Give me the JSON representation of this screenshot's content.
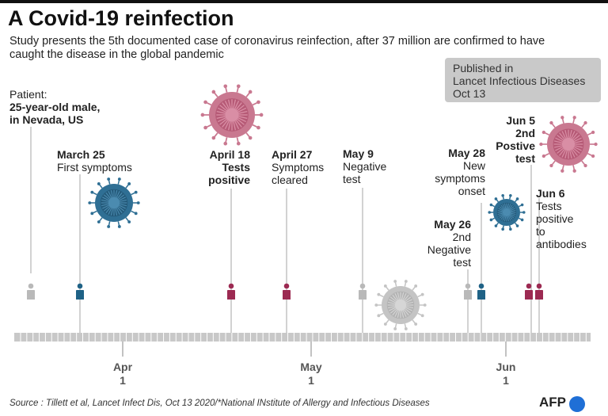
{
  "title": "A Covid-19 reinfection",
  "subtitle": "Study presents the 5th documented case of coronavirus reinfection, after 37 million are confirmed to have caught the disease in the global pandemic",
  "publication": {
    "line1": "Published in",
    "line2": "Lancet Infectious Diseases",
    "line3": "Oct 13"
  },
  "patient": {
    "line1": "Patient:",
    "line2": "25-year-old male,",
    "line3": "in Nevada, US"
  },
  "events": [
    {
      "date": "March 25",
      "line1": "First symptoms"
    },
    {
      "date": "April 18",
      "line1": "Tests",
      "line2": "positive"
    },
    {
      "date": "April 27",
      "line1": "Symptoms",
      "line2": "cleared"
    },
    {
      "date": "May 9",
      "line1": "Negative",
      "line2": "test"
    },
    {
      "date": "May 26",
      "line1": "2nd",
      "line2": "Negative",
      "line3": "test"
    },
    {
      "date": "May 28",
      "line1": "New",
      "line2": "symptoms",
      "line3": "onset"
    },
    {
      "date": "Jun 5",
      "line1": "2nd",
      "line2": "Postive",
      "line3": "test"
    },
    {
      "date": "Jun 6",
      "line1": "Tests",
      "line2": "positive",
      "line3": "to",
      "line4": "antibodies"
    }
  ],
  "axis_ticks": [
    {
      "month": "Apr",
      "day": "1"
    },
    {
      "month": "May",
      "day": "1"
    },
    {
      "month": "Jun",
      "day": "1"
    }
  ],
  "colors": {
    "grey": "#b9b9b9",
    "blue": "#1f6286",
    "crimson": "#9c2a52",
    "pink_virus": "#c97890",
    "timeline": "#c8c8c8"
  },
  "source": "Source : Tillett et al, Lancet Infect Dis, Oct 13 2020/*National INstitute of Allergy and Infectious Diseases",
  "logo": "AFP"
}
